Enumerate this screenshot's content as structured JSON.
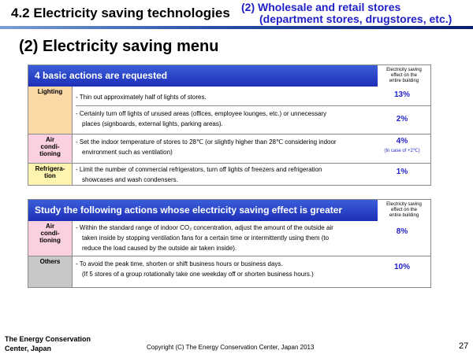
{
  "header": {
    "title": "4.2 Electricity saving technologies",
    "subtitle_line1": "(2) Wholesale and retail stores",
    "subtitle_line2": "(department stores, drugstores, etc.)"
  },
  "page_title": "(2) Electricity saving menu",
  "panel1": {
    "heading": "4 basic actions are requested",
    "effect_header": [
      "Electricity saving",
      "effect on the",
      "entire building"
    ],
    "rows": [
      {
        "category": [
          "Lighting"
        ],
        "lines": [
          "- Thin out approximately half of lights of stores."
        ],
        "effect": "13%"
      },
      {
        "category": [],
        "lines": [
          "- Certainly turn off lights of unused areas (offices, employee lounges, etc.) or unnecessary",
          "places (signboards, external lights, parking areas)."
        ],
        "effect": "2%"
      },
      {
        "category": [
          "Air",
          "condi-",
          "tioning"
        ],
        "lines": [
          "- Set the indoor temperature of stores to 28℃ (or slightly higher than 28℃ considering indoor",
          "environment such as ventilation)"
        ],
        "effect": "4%",
        "effect_note": "(In case of +2℃)"
      },
      {
        "category": [
          "Refrigera-",
          "tion"
        ],
        "lines": [
          "- Limit the number of commercial refrigerators, turn off lights of freezers and refrigeration",
          "showcases and wash condensers."
        ],
        "effect": "1%"
      }
    ]
  },
  "panel2": {
    "heading": "Study the following actions whose electricity saving effect is greater",
    "effect_header": [
      "Electricity saving",
      "effect on the",
      "entire building"
    ],
    "rows": [
      {
        "category": [
          "Air",
          "condi-",
          "tioning"
        ],
        "lines": [
          "- Within the standard range of indoor CO₂ concentration, adjust the amount of the outside air",
          "taken inside by stopping ventilation fans for a certain time or intermittently using them (to",
          "reduce the load caused by the outside air taken inside)."
        ],
        "effect": "8%"
      },
      {
        "category": [
          "Others"
        ],
        "lines": [
          "- To avoid the peak time, shorten or shift business hours or business days.",
          "(If 5 stores of a group rotationally take one weekday off or shorten business hours.)"
        ],
        "effect": "10%"
      }
    ]
  },
  "footer": {
    "org_line1": "The Energy Conservation",
    "org_line2": "Center, Japan",
    "copyright": "Copyright (C) The Energy Conservation Center, Japan 2013",
    "page_number": "27"
  }
}
